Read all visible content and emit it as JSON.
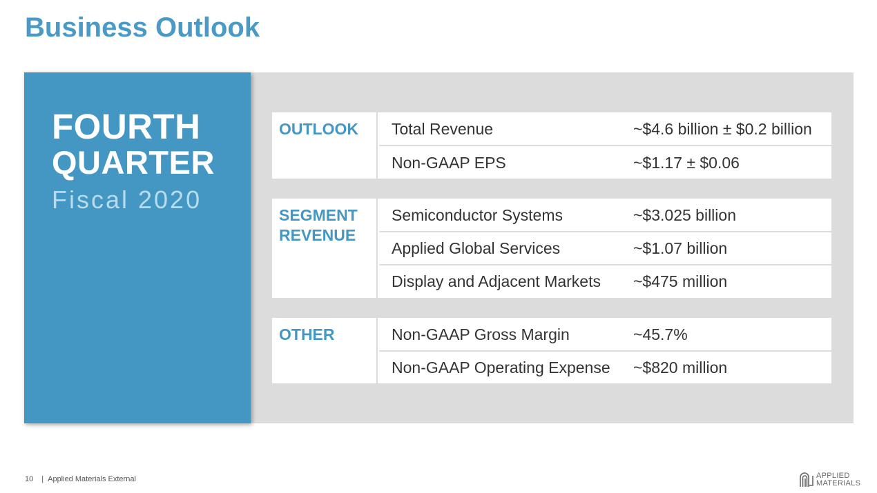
{
  "title": "Business Outlook",
  "panel": {
    "line1": "FOURTH",
    "line2": "QUARTER",
    "subtitle": "Fiscal 2020"
  },
  "groups": [
    {
      "label": "OUTLOOK",
      "rows": [
        {
          "label": "Total Revenue",
          "value": "~$4.6 billion ± $0.2 billion"
        },
        {
          "label": "Non-GAAP EPS",
          "value": "~$1.17 ± $0.06"
        }
      ]
    },
    {
      "label": "SEGMENT REVENUE",
      "rows": [
        {
          "label": "Semiconductor Systems",
          "value": "~$3.025 billion"
        },
        {
          "label": "Applied Global Services",
          "value": "~$1.07 billion"
        },
        {
          "label": "Display and Adjacent Markets",
          "value": "~$475 million"
        }
      ]
    },
    {
      "label": "OTHER",
      "rows": [
        {
          "label": "Non-GAAP Gross Margin",
          "value": "~45.7%"
        },
        {
          "label": "Non-GAAP Operating Expense",
          "value": "~$820 million"
        }
      ]
    }
  ],
  "footer": {
    "page_number": "10",
    "separator": "|",
    "text": "Applied Materials External"
  },
  "logo": {
    "line1": "APPLIED",
    "line2": "MATERIALS",
    "icon": "applied-materials-logo-icon"
  },
  "colors": {
    "accent_blue": "#4597c3",
    "title_blue": "#4a9ac5",
    "panel_gray": "#dcdcdc"
  }
}
